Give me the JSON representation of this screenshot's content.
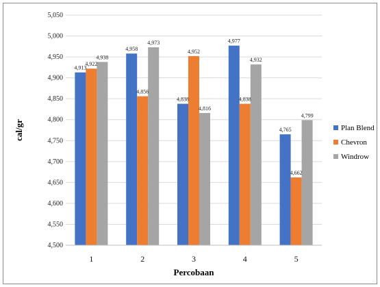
{
  "chart_data": {
    "type": "bar",
    "title": "",
    "xlabel": "Percobaan",
    "ylabel": "cal/gr",
    "categories": [
      "1",
      "2",
      "3",
      "4",
      "5"
    ],
    "ylim": [
      4500,
      5050
    ],
    "yticks": [
      "4,500",
      "4,550",
      "4,600",
      "4,650",
      "4,700",
      "4,750",
      "4,800",
      "4,850",
      "4,900",
      "4,950",
      "5,000",
      "5,050"
    ],
    "grid": true,
    "legend_position": "right",
    "series": [
      {
        "name": "Plan Blend",
        "color": "#4472C4",
        "values": [
          4913,
          4958,
          4838,
          4977,
          4765
        ],
        "labels": [
          "4,913",
          "4,958",
          "4,838",
          "4,977",
          "4,765"
        ]
      },
      {
        "name": "Chevron",
        "color": "#ED7D31",
        "values": [
          4922,
          4856,
          4952,
          4838,
          4662
        ],
        "labels": [
          "4,922",
          "4,856",
          "4,952",
          "4,838",
          "4,662"
        ]
      },
      {
        "name": "Windrow",
        "color": "#A5A5A5",
        "values": [
          4938,
          4973,
          4816,
          4932,
          4799
        ],
        "labels": [
          "4,938",
          "4,973",
          "4,816",
          "4,932",
          "4,799"
        ]
      }
    ]
  }
}
